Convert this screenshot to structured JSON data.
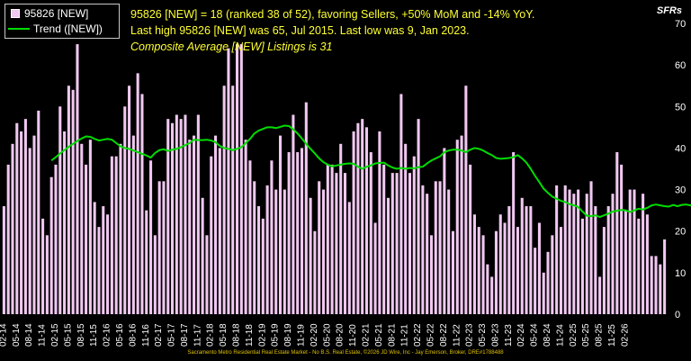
{
  "legend": {
    "bar_label": "95826 [NEW]",
    "line_label": "Trend ([NEW])"
  },
  "annotations": {
    "line1": "95826 [NEW] = 18 (ranked 38 of 52), favoring Sellers, +50% MoM and -14% YoY.",
    "line2": "Last high 95826 [NEW] was 65, Jul 2015. Last low was 9, Jan 2023.",
    "line3": "Composite Average [NEW] Listings is 31"
  },
  "unit_label": "SFRs",
  "footer": "Sacramento Metro Residential Real Estate Market - No B.S. Real Estate, ©2026 JD Wire, Inc - Jay Emerson, Broker, DRE#1788488",
  "colors": {
    "background": "#000000",
    "bar": "#f0c8f0",
    "trend": "#00dd00",
    "annotation": "#ffff33",
    "text": "#ffffff"
  },
  "chart_data": {
    "type": "bar",
    "ylim": [
      0,
      70
    ],
    "yticks": [
      0,
      10,
      20,
      30,
      40,
      50,
      60,
      70
    ],
    "grid": false,
    "legend_position": "top-left",
    "tick_labels": [
      "02-14",
      "05-14",
      "08-14",
      "11-14",
      "02-15",
      "05-15",
      "08-15",
      "11-15",
      "02-16",
      "05-16",
      "08-16",
      "11-16",
      "02-17",
      "05-17",
      "08-17",
      "11-17",
      "02-18",
      "05-18",
      "08-18",
      "11-18",
      "02-19",
      "05-19",
      "08-19",
      "11-19",
      "02-20",
      "05-20",
      "08-20",
      "11-20",
      "02-21",
      "05-21",
      "08-21",
      "11-21",
      "02-22",
      "05-22",
      "08-22",
      "11-22",
      "02-23",
      "05-23",
      "08-23",
      "11-23",
      "02-24",
      "05-24",
      "08-24",
      "11-24",
      "02-25",
      "05-25",
      "08-25",
      "11-25",
      "02-26"
    ],
    "series": [
      {
        "name": "95826 [NEW]",
        "type": "bar",
        "values": [
          26,
          36,
          41,
          46,
          44,
          47,
          40,
          43,
          49,
          23,
          19,
          33,
          36,
          50,
          44,
          55,
          54,
          65,
          41,
          36,
          42,
          27,
          21,
          26,
          24,
          38,
          38,
          41,
          50,
          55,
          43,
          58,
          53,
          25,
          37,
          19,
          32,
          32,
          47,
          46,
          48,
          47,
          48,
          42,
          43,
          48,
          28,
          19,
          38,
          43,
          40,
          55,
          64,
          55,
          65,
          65,
          42,
          37,
          32,
          26,
          23,
          31,
          37,
          30,
          43,
          30,
          39,
          48,
          39,
          40,
          51,
          28,
          20,
          32,
          30,
          36,
          36,
          34,
          41,
          34,
          27,
          44,
          46,
          47,
          45,
          39,
          22,
          44,
          36,
          28,
          34,
          34,
          53,
          41,
          34,
          38,
          47,
          31,
          29,
          19,
          32,
          32,
          40,
          30,
          20,
          42,
          43,
          55,
          36,
          24,
          21,
          19,
          12,
          9,
          20,
          24,
          22,
          26,
          39,
          21,
          28,
          26,
          26,
          16,
          22,
          10,
          15,
          19,
          31,
          21,
          31,
          30,
          29,
          30,
          23,
          29,
          32,
          26,
          9,
          21,
          26,
          29,
          39,
          36,
          25,
          30,
          30,
          23,
          29,
          24,
          14,
          14,
          12,
          18
        ]
      },
      {
        "name": "Trend ([NEW])",
        "type": "line",
        "start_index": 11,
        "values": [
          37,
          37.8,
          38.7,
          39.5,
          40.3,
          41,
          41.7,
          42.3,
          42.8,
          42.7,
          42.2,
          41.8,
          42,
          42.2,
          42,
          41.2,
          40.4,
          40,
          39.8,
          39.4,
          39,
          38.6,
          38.2,
          37.7,
          38.8,
          39.5,
          39.7,
          39.3,
          39.6,
          39.8,
          40.2,
          40.7,
          41.2,
          42,
          41.9,
          41.9,
          42,
          41.8,
          41.4,
          40.5,
          40,
          39.8,
          39.5,
          39.8,
          40.2,
          41.2,
          42.2,
          43.5,
          44.2,
          44.6,
          45,
          45,
          44.8,
          45.1,
          45.4,
          45.3,
          44.5,
          43.5,
          42.3,
          41,
          39.8,
          38.7,
          37.5,
          36.6,
          36,
          35.6,
          35.8,
          36,
          36.2,
          36.3,
          36.2,
          35.5,
          35,
          35.5,
          35.8,
          36.3,
          36.4,
          36.5,
          35.8,
          35.3,
          35,
          35.2,
          35,
          35.2,
          35.1,
          35.4,
          35.5,
          36.3,
          37,
          37.5,
          38,
          39,
          39.4,
          39.6,
          39.6,
          39.4,
          39,
          39.6,
          40,
          39.8,
          39.4,
          38.8,
          38.3,
          37.6,
          37.4,
          37.5,
          37.6,
          37.8,
          38.3,
          37.5,
          36.5,
          35,
          33.3,
          31.8,
          30.2,
          29.2,
          28.3,
          27.8,
          27.3,
          27,
          26.5,
          26.2,
          25.8,
          24.7,
          23.7,
          23.6,
          23.8,
          23.4,
          23.8,
          24.2,
          24.7,
          24.9,
          25.1,
          25,
          24.6,
          25,
          25.4,
          25.2,
          25.6,
          26.2,
          26.4,
          26.2,
          26,
          25.9,
          26.3,
          26,
          26.3,
          26.4,
          26.2,
          26.2,
          26,
          25.7,
          25.1,
          24.8
        ]
      }
    ]
  }
}
